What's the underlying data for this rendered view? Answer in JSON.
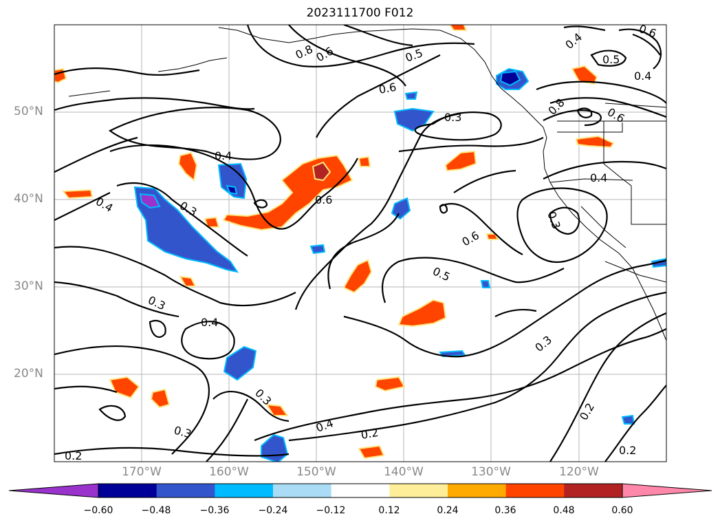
{
  "title": "2023111700 F012",
  "lat_labels": [
    "50°N",
    "40°N",
    "30°N",
    "20°N"
  ],
  "lon_labels": [
    "170°W",
    "160°W",
    "150°W",
    "140°W",
    "130°W",
    "120°W"
  ],
  "contour_labels": [
    "0.8",
    "0.6",
    "0.5",
    "0.4",
    "0.6",
    "0.5",
    "0.4",
    "0.6",
    "0.8",
    "0.6",
    "0.3",
    "0.4",
    "0.6",
    "0.4",
    "0.4",
    "0.3",
    "0.3",
    "0.6",
    "0.5",
    "0.3",
    "0.4",
    "0.3",
    "0.3",
    "0.2",
    "0.4",
    "0.2",
    "0.2",
    "0.2",
    "0.3"
  ],
  "colorbar": {
    "colors": [
      "#9933cc",
      "#000099",
      "#3355cc",
      "#00bbff",
      "#aaddf5",
      "#ffffff",
      "#ffee99",
      "#ffaa00",
      "#ff4400",
      "#b22222",
      "#ff88aa"
    ],
    "ticks": [
      "−0.60",
      "−0.48",
      "−0.36",
      "−0.24",
      "−0.12",
      "0.12",
      "0.24",
      "0.36",
      "0.48",
      "0.60"
    ]
  }
}
